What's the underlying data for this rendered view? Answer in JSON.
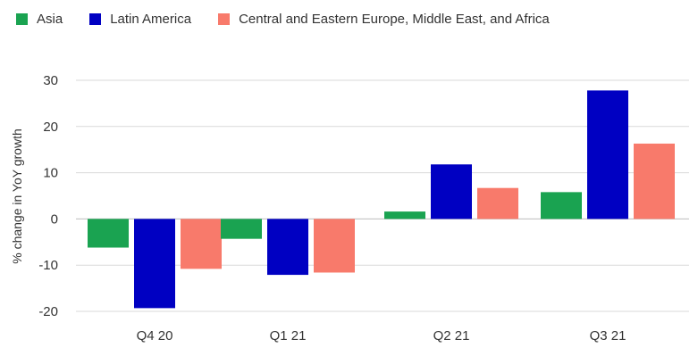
{
  "chart_data": {
    "type": "bar",
    "title": "",
    "xlabel": "",
    "ylabel": "% change in YoY growth",
    "categories": [
      "Q4 20",
      "Q1 21",
      "Q2 21",
      "Q3 21"
    ],
    "series": [
      {
        "name": "Asia",
        "color": "#1aa351",
        "values": [
          -6.2,
          -4.3,
          1.6,
          5.8
        ]
      },
      {
        "name": "Latin America",
        "color": "#0000c2",
        "values": [
          -19.3,
          -12.1,
          11.8,
          27.8
        ]
      },
      {
        "name": "Central and Eastern Europe, Middle East, and Africa",
        "color": "#f87a6b",
        "values": [
          -10.8,
          -11.6,
          6.7,
          16.3
        ]
      }
    ],
    "yticks": [
      30,
      20,
      10,
      0,
      -10,
      -20
    ],
    "ylim": [
      -20,
      30
    ],
    "grid": true,
    "legend_position": "top-left"
  }
}
